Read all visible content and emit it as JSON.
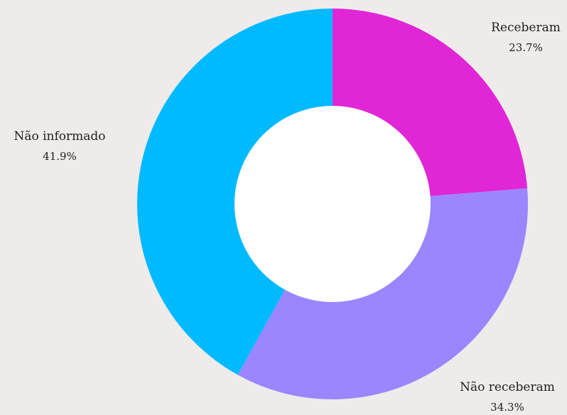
{
  "chart_data": {
    "type": "pie",
    "donut": true,
    "legend": "none",
    "slices": [
      {
        "label": "Receberam",
        "value": 23.7,
        "pct_label": "23.7%",
        "color": "#e026d6"
      },
      {
        "label": "Não receberam",
        "value": 34.3,
        "pct_label": "34.3%",
        "color": "#9b86ff"
      },
      {
        "label": "Não informado",
        "value": 41.9,
        "pct_label": "41.9%",
        "color": "#00baff"
      }
    ]
  },
  "colors": {
    "background": "#efebea",
    "hole": "#ffffff",
    "text": "#1f1f1f"
  }
}
